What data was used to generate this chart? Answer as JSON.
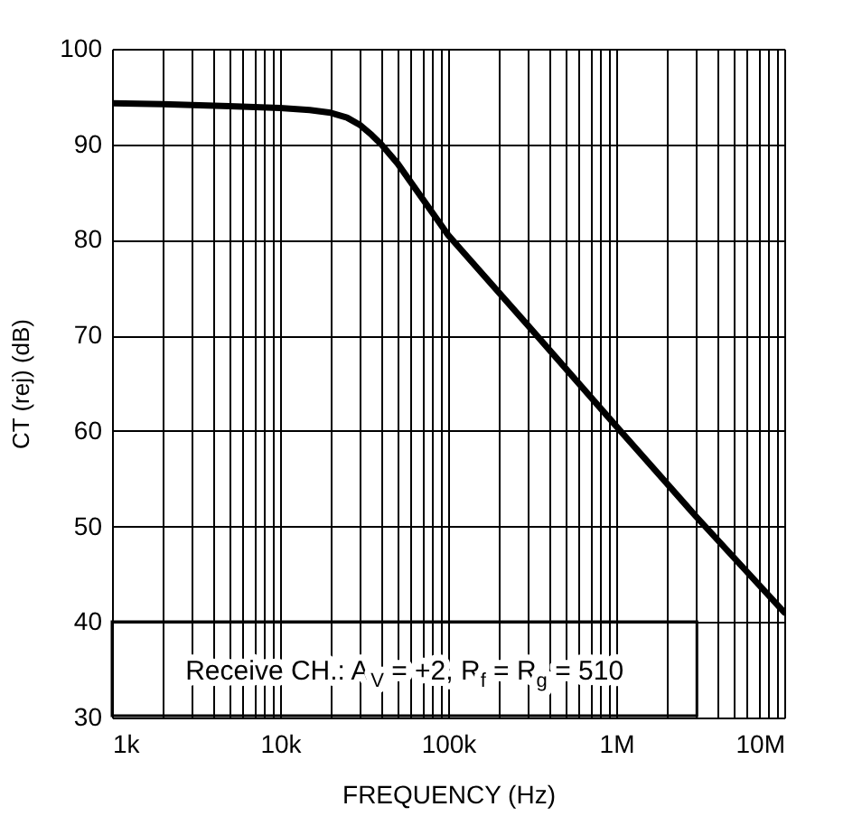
{
  "chart_data": {
    "type": "line",
    "xlabel": "FREQUENCY (Hz)",
    "ylabel": "CT (rej) (dB)",
    "log": "x",
    "grid": true,
    "marker": "none",
    "line_style": "solid",
    "annotations": [
      "Receive CH.: A$_{V}$ = +2, R$_{f}$ = R$_{g}$ = 510"
    ],
    "xlim": [
      1000,
      10000000
    ],
    "ylim": [
      30,
      100
    ],
    "xticks": [
      {
        "value": 1000,
        "label": "1k"
      },
      {
        "value": 2000,
        "label": null
      },
      {
        "value": 3000,
        "label": null
      },
      {
        "value": 4000,
        "label": null
      },
      {
        "value": 5000,
        "label": null
      },
      {
        "value": 6000,
        "label": null
      },
      {
        "value": 7000,
        "label": null
      },
      {
        "value": 8000,
        "label": null
      },
      {
        "value": 9000,
        "label": null
      },
      {
        "value": 10000,
        "label": "10k"
      },
      {
        "value": 20000,
        "label": null
      },
      {
        "value": 30000,
        "label": null
      },
      {
        "value": 40000,
        "label": null
      },
      {
        "value": 50000,
        "label": null
      },
      {
        "value": 60000,
        "label": null
      },
      {
        "value": 70000,
        "label": null
      },
      {
        "value": 80000,
        "label": null
      },
      {
        "value": 90000,
        "label": null
      },
      {
        "value": 100000,
        "label": "100k"
      },
      {
        "value": 200000,
        "label": null
      },
      {
        "value": 300000,
        "label": null
      },
      {
        "value": 400000,
        "label": null
      },
      {
        "value": 500000,
        "label": null
      },
      {
        "value": 600000,
        "label": null
      },
      {
        "value": 700000,
        "label": null
      },
      {
        "value": 800000,
        "label": null
      },
      {
        "value": 900000,
        "label": null
      },
      {
        "value": 1000000,
        "label": "1M"
      },
      {
        "value": 2000000,
        "label": null
      },
      {
        "value": 3000000,
        "label": null
      },
      {
        "value": 4000000,
        "label": null
      },
      {
        "value": 5000000,
        "label": null
      },
      {
        "value": 6000000,
        "label": null
      },
      {
        "value": 7000000,
        "label": null
      },
      {
        "value": 8000000,
        "label": null
      },
      {
        "value": 9000000,
        "label": null
      },
      {
        "value": 10000000,
        "label": "10M"
      }
    ],
    "yticks": [
      30,
      40,
      50,
      60,
      70,
      80,
      90,
      100
    ],
    "series": [
      {
        "color": "#000000",
        "x": [
          1000,
          2000,
          5000,
          10000,
          15000,
          20000,
          25000,
          30000,
          35000,
          40000,
          50000,
          100000,
          300000,
          1000000,
          3000000,
          10000000
        ],
        "values": [
          94.3,
          94.2,
          94.0,
          93.8,
          93.6,
          93.3,
          92.8,
          92.0,
          91.0,
          90.0,
          88.0,
          80.5,
          71.0,
          60.5,
          51.0,
          41.0
        ]
      }
    ]
  }
}
